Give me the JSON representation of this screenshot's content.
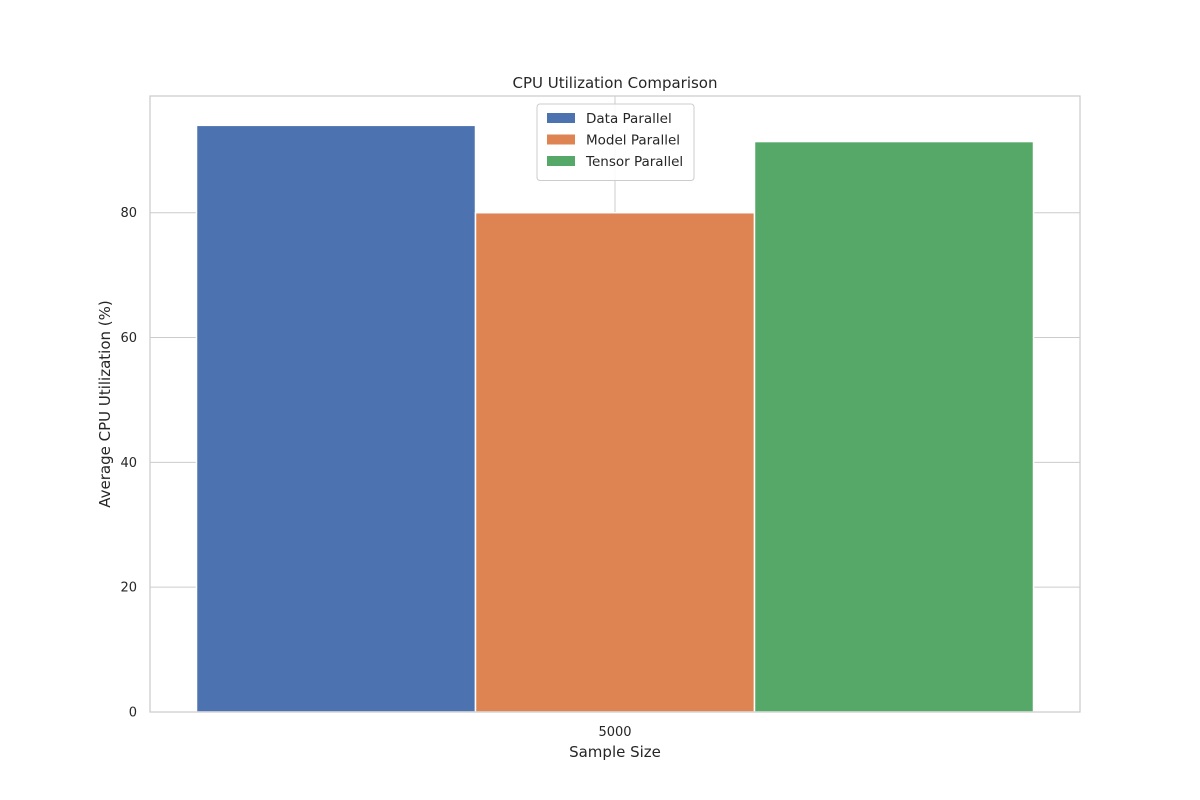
{
  "chart_data": {
    "type": "bar",
    "title": "CPU Utilization Comparison",
    "xlabel": "Sample Size",
    "ylabel": "Average CPU Utilization (%)",
    "categories": [
      "5000"
    ],
    "series": [
      {
        "name": "Data Parallel",
        "values": [
          94.0
        ],
        "color": "#4c72b0"
      },
      {
        "name": "Model Parallel",
        "values": [
          80.0
        ],
        "color": "#dd8452"
      },
      {
        "name": "Tensor Parallel",
        "values": [
          91.4
        ],
        "color": "#55a868"
      }
    ],
    "ylim": [
      0,
      98.7
    ],
    "yticks": [
      0,
      20,
      40,
      60,
      80
    ],
    "grid": true,
    "legend_position": "upper center"
  }
}
